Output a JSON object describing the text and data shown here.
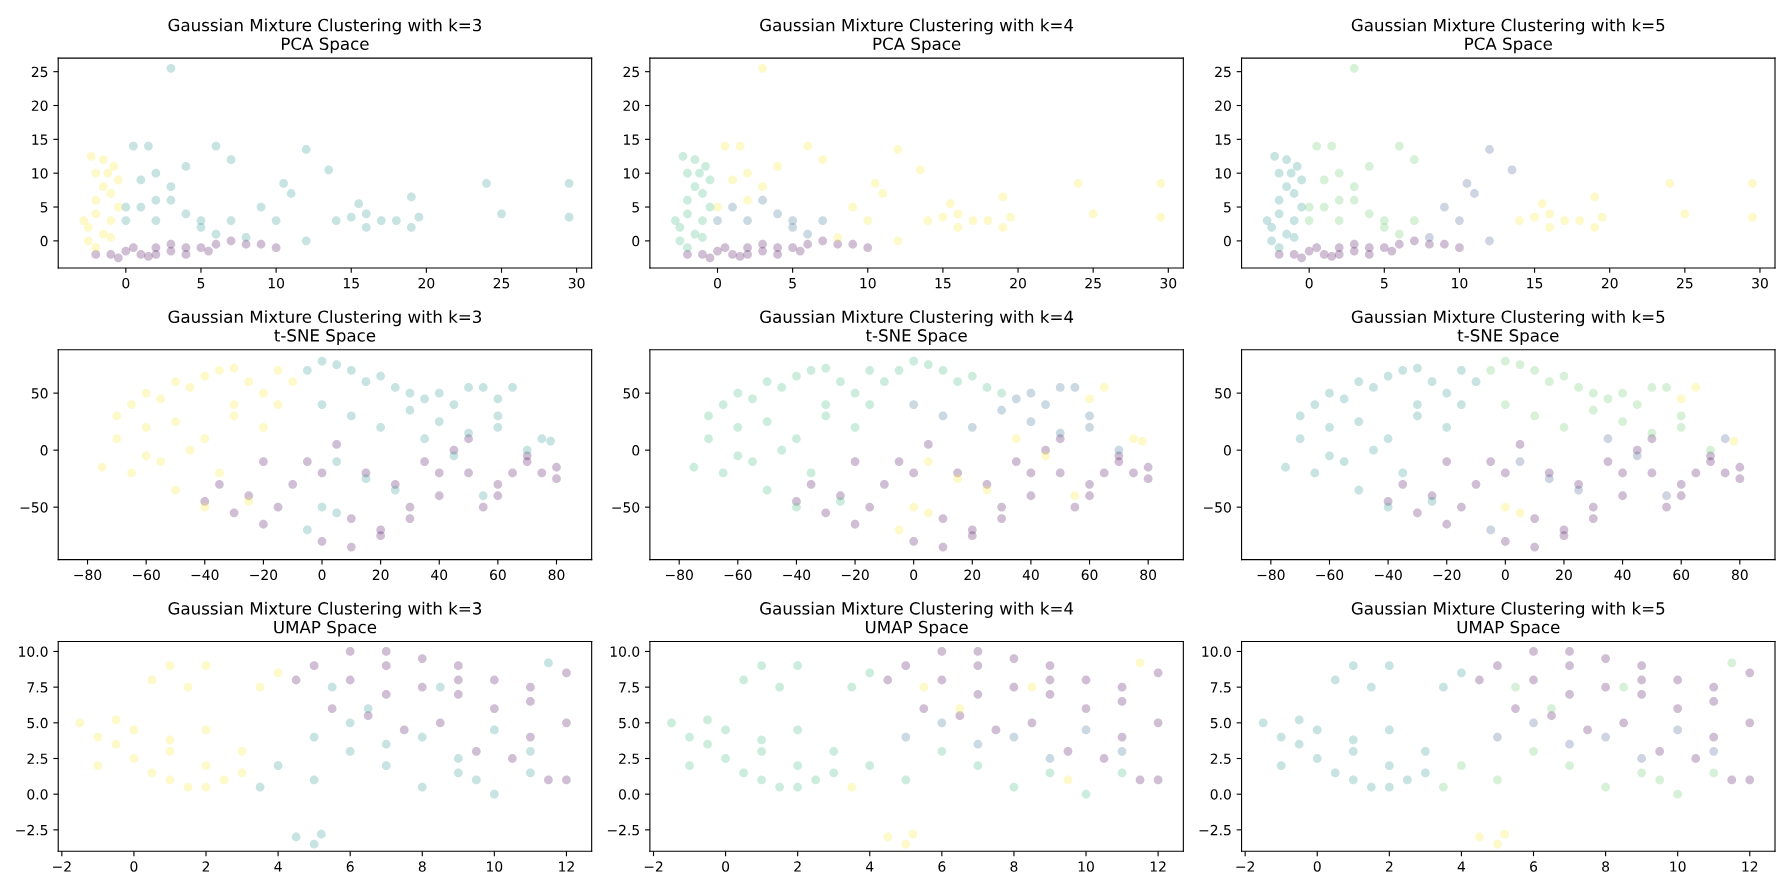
{
  "chart_data": [
    {
      "type": "scatter",
      "title": "Gaussian Mixture Clustering with k=3",
      "subtitle": "PCA Space",
      "marker": "circle",
      "grid": false,
      "xlim": [
        -4.5,
        31
      ],
      "ylim": [
        -4,
        27
      ],
      "xticks": [
        0,
        5,
        10,
        15,
        20,
        25,
        30
      ],
      "yticks": [
        0,
        5,
        10,
        15,
        20,
        25
      ],
      "series": [
        {
          "color": "#440154",
          "x": [
            -2,
            -1,
            0,
            1,
            2,
            3,
            4,
            5,
            6,
            7,
            8,
            0.5,
            2,
            3,
            1.5,
            -0.5,
            4,
            5.5,
            9,
            10
          ],
          "values": [
            -2,
            -2,
            -1.5,
            -2,
            -2,
            -1.5,
            -1,
            -1,
            -0.5,
            0,
            -0.5,
            -1,
            -1,
            -0.5,
            -2.3,
            -2.5,
            -2,
            -1.5,
            -0.5,
            -1
          ]
        },
        {
          "color": "#21918c",
          "x": [
            0,
            0.5,
            1,
            1.5,
            2,
            2,
            3,
            3,
            4,
            4,
            5,
            6,
            6,
            7,
            0,
            1,
            2,
            3,
            5,
            7,
            8,
            9,
            10,
            10.5,
            11,
            12,
            12,
            13.5,
            14,
            15,
            15.5,
            16,
            16,
            17,
            18,
            19,
            19,
            19.5,
            24,
            25,
            29.5,
            29.5
          ],
          "values": [
            5,
            14,
            9,
            14,
            6,
            10,
            8,
            25.5,
            4,
            11,
            2,
            14,
            1,
            12,
            3,
            5,
            3,
            6,
            3,
            3,
            0.5,
            5,
            3,
            8.5,
            7,
            13.5,
            0,
            10.5,
            3,
            3.5,
            5.5,
            4,
            2,
            3,
            3,
            6.5,
            2,
            3.5,
            8.5,
            4,
            8.5,
            3.5
          ]
        },
        {
          "color": "#fde725",
          "x": [
            -2.5,
            -2.5,
            -2,
            -2,
            -1.5,
            -1,
            -1,
            -0.5,
            -2,
            -1.5,
            -1,
            -2.8,
            -0.5,
            -1.2,
            -2,
            -1.5,
            -2.3,
            -0.8
          ],
          "values": [
            0,
            2,
            4,
            6,
            8,
            7,
            3,
            5,
            -1,
            1,
            0.5,
            3,
            9,
            10,
            10,
            12,
            12.5,
            11
          ]
        }
      ]
    },
    {
      "type": "scatter",
      "title": "Gaussian Mixture Clustering with k=4",
      "subtitle": "PCA Space",
      "marker": "circle",
      "grid": false,
      "xlim": [
        -4.5,
        31
      ],
      "ylim": [
        -4,
        27
      ],
      "xticks": [
        0,
        5,
        10,
        15,
        20,
        25,
        30
      ],
      "yticks": [
        0,
        5,
        10,
        15,
        20,
        25
      ],
      "series": [
        {
          "color": "#440154",
          "x": [
            -2,
            -1,
            0,
            1,
            2,
            3,
            4,
            5,
            6,
            7,
            8,
            0.5,
            2,
            3,
            1.5,
            -0.5,
            4,
            5.5,
            9,
            10
          ],
          "values": [
            -2,
            -2,
            -1.5,
            -2,
            -2,
            -1.5,
            -1,
            -1,
            -0.5,
            0,
            -0.5,
            -1,
            -1,
            -0.5,
            -2.3,
            -2.5,
            -2,
            -1.5,
            -0.5,
            -1
          ]
        },
        {
          "color": "#31688e",
          "x": [
            5,
            6,
            0,
            1,
            2,
            3,
            5,
            7,
            4
          ],
          "values": [
            2,
            1,
            3,
            5,
            3,
            6,
            3,
            3,
            4
          ]
        },
        {
          "color": "#35b779",
          "x": [
            -2.5,
            -2.5,
            -2,
            -2,
            -1.5,
            -1,
            -1,
            -0.5,
            -2,
            -1.5,
            -1,
            -2.8,
            -0.5,
            -1.2,
            -2,
            -1.5,
            -2.3,
            -0.8
          ],
          "values": [
            0,
            2,
            4,
            6,
            8,
            7,
            3,
            5,
            -1,
            1,
            0.5,
            3,
            9,
            10,
            10,
            12,
            12.5,
            11
          ]
        },
        {
          "color": "#fde725",
          "x": [
            0,
            0.5,
            1,
            1.5,
            2,
            2,
            3,
            3,
            4,
            6,
            7,
            8,
            9,
            10,
            10.5,
            11,
            12,
            12,
            13.5,
            14,
            15,
            15.5,
            16,
            16,
            17,
            18,
            19,
            19,
            19.5,
            24,
            25,
            29.5,
            29.5
          ],
          "values": [
            5,
            14,
            9,
            14,
            6,
            10,
            8,
            25.5,
            11,
            14,
            12,
            0.5,
            5,
            3,
            8.5,
            7,
            13.5,
            0,
            10.5,
            3,
            3.5,
            5.5,
            4,
            2,
            3,
            3,
            6.5,
            2,
            3.5,
            8.5,
            4,
            8.5,
            3.5
          ]
        }
      ]
    },
    {
      "type": "scatter",
      "title": "Gaussian Mixture Clustering with k=5",
      "subtitle": "PCA Space",
      "marker": "circle",
      "grid": false,
      "xlim": [
        -4.5,
        31
      ],
      "ylim": [
        -4,
        27
      ],
      "xticks": [
        0,
        5,
        10,
        15,
        20,
        25,
        30
      ],
      "yticks": [
        0,
        5,
        10,
        15,
        20,
        25
      ],
      "series": [
        {
          "color": "#440154",
          "x": [
            -2,
            -1,
            0,
            1,
            2,
            3,
            4,
            5,
            6,
            7,
            8,
            0.5,
            2,
            3,
            1.5,
            -0.5,
            4,
            5.5,
            9,
            10
          ],
          "values": [
            -2,
            -2,
            -1.5,
            -2,
            -2,
            -1.5,
            -1,
            -1,
            -0.5,
            0,
            -0.5,
            -1,
            -1,
            -0.5,
            -2.3,
            -2.5,
            -2,
            -1.5,
            -0.5,
            -1
          ]
        },
        {
          "color": "#3b528b",
          "x": [
            8,
            9,
            10,
            10.5,
            11,
            12,
            12,
            13.5
          ],
          "values": [
            0.5,
            5,
            3,
            8.5,
            7,
            13.5,
            0,
            10.5
          ]
        },
        {
          "color": "#21918c",
          "x": [
            -2.5,
            -2.5,
            -2,
            -2,
            -1.5,
            -1,
            -1,
            -0.5,
            -2,
            -1.5,
            -1,
            -2.8,
            -0.5,
            -1.2,
            -2,
            -1.5,
            -2.3,
            -0.8
          ],
          "values": [
            0,
            2,
            4,
            6,
            8,
            7,
            3,
            5,
            -1,
            1,
            0.5,
            3,
            9,
            10,
            10,
            12,
            12.5,
            11
          ]
        },
        {
          "color": "#5ec962",
          "x": [
            0,
            0.5,
            1,
            1.5,
            2,
            2,
            3,
            3,
            4,
            4,
            5,
            6,
            6,
            7,
            0,
            1,
            2,
            3,
            5,
            7
          ],
          "values": [
            5,
            14,
            9,
            14,
            6,
            10,
            8,
            25.5,
            4,
            11,
            2,
            14,
            1,
            12,
            3,
            5,
            3,
            6,
            3,
            3
          ]
        },
        {
          "color": "#fde725",
          "x": [
            14,
            15,
            15.5,
            16,
            16,
            17,
            18,
            19,
            19,
            19.5,
            24,
            25,
            29.5,
            29.5
          ],
          "values": [
            3,
            3.5,
            5.5,
            4,
            2,
            3,
            3,
            6.5,
            2,
            3.5,
            8.5,
            4,
            8.5,
            3.5
          ]
        }
      ]
    },
    {
      "type": "scatter",
      "title": "Gaussian Mixture Clustering with k=3",
      "subtitle": "t-SNE Space",
      "marker": "circle",
      "grid": false,
      "xlim": [
        -90,
        92
      ],
      "ylim": [
        -96,
        88
      ],
      "xticks": [
        {
          "value": -80,
          "label": "−80"
        },
        {
          "value": -60,
          "label": "−60"
        },
        {
          "value": -40,
          "label": "−40"
        },
        {
          "value": -20,
          "label": "−20"
        },
        0,
        20,
        40,
        60,
        80
      ],
      "yticks": [
        {
          "value": -50,
          "label": "−50"
        },
        0,
        50
      ],
      "series": [
        {
          "color": "#440154",
          "x": [
            -40,
            -30,
            -20,
            -10,
            0,
            10,
            20,
            30,
            40,
            50,
            60,
            70,
            80,
            -35,
            -25,
            -15,
            -5,
            5,
            15,
            25,
            35,
            45,
            55,
            65,
            75,
            -20,
            0,
            10,
            20,
            30,
            40,
            50,
            60,
            70,
            80
          ],
          "values": [
            -45,
            -55,
            -65,
            -30,
            -20,
            -60,
            -70,
            -50,
            -40,
            -20,
            -30,
            -10,
            -15,
            -30,
            -40,
            -50,
            -10,
            5,
            -20,
            -30,
            -10,
            0,
            -50,
            -20,
            -20,
            -10,
            -80,
            -85,
            -75,
            -60,
            -20,
            10,
            -40,
            -5,
            -25
          ]
        },
        {
          "color": "#21918c",
          "x": [
            -5,
            0,
            5,
            10,
            15,
            20,
            25,
            30,
            35,
            40,
            45,
            50,
            55,
            60,
            0,
            10,
            20,
            30,
            40,
            50,
            60,
            70,
            75,
            5,
            15,
            25,
            35,
            45,
            -5,
            55,
            65,
            60,
            78,
            0,
            5
          ],
          "values": [
            70,
            78,
            75,
            70,
            60,
            65,
            55,
            50,
            45,
            50,
            40,
            55,
            55,
            30,
            40,
            30,
            20,
            35,
            25,
            15,
            20,
            0,
            10,
            -10,
            -25,
            -35,
            10,
            -5,
            -70,
            -40,
            55,
            45,
            8,
            -50,
            -55
          ]
        },
        {
          "color": "#fde725",
          "x": [
            -70,
            -65,
            -60,
            -55,
            -50,
            -45,
            -40,
            -35,
            -30,
            -25,
            -20,
            -15,
            -60,
            -50,
            -40,
            -30,
            -20,
            -10,
            -70,
            -55,
            -45,
            -35,
            -25,
            -65,
            -50,
            -40,
            -75,
            -60,
            -30,
            -15
          ],
          "values": [
            30,
            40,
            50,
            45,
            60,
            55,
            65,
            70,
            72,
            60,
            50,
            40,
            20,
            25,
            10,
            30,
            20,
            60,
            10,
            -10,
            0,
            -20,
            -45,
            -20,
            -35,
            -50,
            -15,
            -5,
            40,
            70
          ]
        }
      ]
    },
    {
      "type": "scatter",
      "title": "Gaussian Mixture Clustering with k=4",
      "subtitle": "t-SNE Space",
      "marker": "circle",
      "grid": false,
      "xlim": [
        -90,
        92
      ],
      "ylim": [
        -96,
        88
      ],
      "xticks": [
        {
          "value": -80,
          "label": "−80"
        },
        {
          "value": -60,
          "label": "−60"
        },
        {
          "value": -40,
          "label": "−40"
        },
        {
          "value": -20,
          "label": "−20"
        },
        0,
        20,
        40,
        60,
        80
      ],
      "yticks": [
        {
          "value": -50,
          "label": "−50"
        },
        0,
        50
      ],
      "series": [
        {
          "color": "#440154",
          "x": [
            -40,
            -30,
            -20,
            -10,
            0,
            10,
            20,
            30,
            40,
            50,
            60,
            70,
            80,
            -35,
            -25,
            -15,
            -5,
            5,
            15,
            25,
            35,
            45,
            55,
            65,
            75,
            -20,
            0,
            10,
            20,
            30,
            40,
            50,
            60,
            70,
            80
          ],
          "values": [
            -45,
            -55,
            -65,
            -30,
            -20,
            -60,
            -70,
            -50,
            -40,
            -20,
            -30,
            -10,
            -15,
            -30,
            -40,
            -50,
            -10,
            5,
            -20,
            -30,
            -10,
            0,
            -50,
            -20,
            -20,
            -10,
            -80,
            -85,
            -75,
            -60,
            -20,
            10,
            -40,
            -5,
            -25
          ]
        },
        {
          "color": "#31688e",
          "x": [
            35,
            40,
            45,
            50,
            55,
            60,
            0,
            10,
            20,
            30,
            40,
            50,
            60,
            70
          ],
          "values": [
            45,
            50,
            40,
            55,
            55,
            30,
            40,
            30,
            20,
            35,
            25,
            15,
            20,
            0
          ]
        },
        {
          "color": "#35b779",
          "x": [
            -70,
            -65,
            -60,
            -55,
            -50,
            -45,
            -40,
            -35,
            -30,
            -25,
            -20,
            -15,
            -60,
            -50,
            -40,
            -30,
            -20,
            -10,
            -70,
            -55,
            -45,
            -35,
            -25,
            -65,
            -50,
            -40,
            -75,
            -60,
            -30,
            -15,
            -5,
            0,
            5,
            10,
            15,
            20,
            25,
            30
          ],
          "values": [
            30,
            40,
            50,
            45,
            60,
            55,
            65,
            70,
            72,
            60,
            50,
            40,
            20,
            25,
            10,
            30,
            20,
            60,
            10,
            -10,
            0,
            -20,
            -45,
            -20,
            -35,
            -50,
            -15,
            -5,
            40,
            70,
            70,
            78,
            75,
            70,
            60,
            65,
            55,
            50
          ]
        },
        {
          "color": "#fde725",
          "x": [
            75,
            5,
            15,
            25,
            35,
            45,
            -5,
            55,
            65,
            60,
            78,
            0,
            5
          ],
          "values": [
            10,
            -10,
            -25,
            -35,
            10,
            -5,
            -70,
            -40,
            55,
            45,
            8,
            -50,
            -55
          ]
        }
      ]
    },
    {
      "type": "scatter",
      "title": "Gaussian Mixture Clustering with k=5",
      "subtitle": "t-SNE Space",
      "marker": "circle",
      "grid": false,
      "xlim": [
        -90,
        92
      ],
      "ylim": [
        -96,
        88
      ],
      "xticks": [
        {
          "value": -80,
          "label": "−80"
        },
        {
          "value": -60,
          "label": "−60"
        },
        {
          "value": -40,
          "label": "−40"
        },
        {
          "value": -20,
          "label": "−20"
        },
        0,
        20,
        40,
        60,
        80
      ],
      "yticks": [
        {
          "value": -50,
          "label": "−50"
        },
        0,
        50
      ],
      "series": [
        {
          "color": "#440154",
          "x": [
            -40,
            -30,
            -20,
            -10,
            0,
            10,
            20,
            30,
            40,
            50,
            60,
            70,
            80,
            -35,
            -25,
            -15,
            -5,
            5,
            15,
            25,
            35,
            45,
            55,
            65,
            75,
            -20,
            0,
            10,
            20,
            30,
            40,
            50,
            60,
            70,
            80
          ],
          "values": [
            -45,
            -55,
            -65,
            -30,
            -20,
            -60,
            -70,
            -50,
            -40,
            -20,
            -30,
            -10,
            -15,
            -30,
            -40,
            -50,
            -10,
            5,
            -20,
            -30,
            -10,
            0,
            -50,
            -20,
            -20,
            -10,
            -80,
            -85,
            -75,
            -60,
            -20,
            10,
            -40,
            -5,
            -25
          ]
        },
        {
          "color": "#3b528b",
          "x": [
            75,
            5,
            15,
            25,
            35,
            45,
            -5,
            55
          ],
          "values": [
            10,
            -10,
            -25,
            -35,
            10,
            -5,
            -70,
            -40
          ]
        },
        {
          "color": "#21918c",
          "x": [
            -70,
            -65,
            -60,
            -55,
            -50,
            -45,
            -40,
            -35,
            -30,
            -25,
            -20,
            -15,
            -60,
            -50,
            -40,
            -30,
            -20,
            -10,
            -70,
            -55,
            -45,
            -35,
            -25,
            -65,
            -50,
            -40,
            -75,
            -60,
            -30,
            -15
          ],
          "values": [
            30,
            40,
            50,
            45,
            60,
            55,
            65,
            70,
            72,
            60,
            50,
            40,
            20,
            25,
            10,
            30,
            20,
            60,
            10,
            -10,
            0,
            -20,
            -45,
            -20,
            -35,
            -50,
            -15,
            -5,
            40,
            70
          ]
        },
        {
          "color": "#5ec962",
          "x": [
            -5,
            0,
            5,
            10,
            15,
            20,
            25,
            30,
            35,
            40,
            45,
            50,
            55,
            60,
            0,
            10,
            20,
            30,
            40,
            50,
            60,
            70
          ],
          "values": [
            70,
            78,
            75,
            70,
            60,
            65,
            55,
            50,
            45,
            50,
            40,
            55,
            55,
            30,
            40,
            30,
            20,
            35,
            25,
            15,
            20,
            0
          ]
        },
        {
          "color": "#fde725",
          "x": [
            65,
            60,
            78,
            0,
            5
          ],
          "values": [
            55,
            45,
            8,
            -50,
            -55
          ]
        }
      ]
    },
    {
      "type": "scatter",
      "title": "Gaussian Mixture Clustering with k=3",
      "subtitle": "UMAP Space",
      "marker": "circle",
      "grid": false,
      "xlim": [
        -2.1,
        12.7
      ],
      "ylim": [
        -4,
        10.7
      ],
      "xticks": [
        {
          "value": -2,
          "label": "−2"
        },
        0,
        2,
        4,
        6,
        8,
        10,
        12
      ],
      "yticks": [
        {
          "value": -2.5,
          "label": "−2.5"
        },
        {
          "value": 0,
          "label": "0.0"
        },
        {
          "value": 2.5,
          "label": "2.5"
        },
        {
          "value": 5,
          "label": "5.0"
        },
        {
          "value": 7.5,
          "label": "7.5"
        },
        {
          "value": 10,
          "label": "10.0"
        }
      ],
      "series": [
        {
          "color": "#440154",
          "x": [
            5,
            6,
            7,
            8,
            9,
            10,
            11,
            12,
            6,
            7,
            8,
            9,
            10,
            11,
            12,
            5.5,
            6.5,
            7.5,
            8.5,
            9.5,
            10.5,
            11.5,
            4.5,
            7,
            9,
            11,
            12
          ],
          "values": [
            9,
            10,
            10,
            9.5,
            9,
            8,
            7.5,
            8.5,
            8,
            7,
            7.5,
            7,
            6,
            6.5,
            5,
            6,
            5.5,
            4.5,
            5,
            3,
            2.5,
            1,
            8,
            9,
            8,
            4,
            1
          ]
        },
        {
          "color": "#21918c",
          "x": [
            4,
            5,
            6,
            7,
            8,
            9,
            10,
            11,
            5,
            6,
            7,
            8,
            9,
            10,
            11,
            4.5,
            5,
            5.2,
            11.5,
            6.5,
            8.5,
            9.5,
            3.5,
            5.5
          ],
          "values": [
            2,
            1,
            3,
            2,
            0.5,
            1.5,
            0,
            1.5,
            4,
            5,
            3.5,
            4,
            2.5,
            4.5,
            3,
            -3,
            -3.5,
            -2.8,
            9.2,
            6,
            7.5,
            1,
            0.5,
            7.5
          ]
        },
        {
          "color": "#fde725",
          "x": [
            -1.5,
            -1,
            -0.5,
            0,
            0.5,
            1,
            1.5,
            2,
            2.5,
            3,
            -1,
            0,
            1,
            2,
            3,
            0.5,
            1,
            1.5,
            2,
            -0.5,
            3.5,
            4,
            1,
            2
          ],
          "values": [
            5,
            4,
            3.5,
            2.5,
            1.5,
            1,
            0.5,
            0.5,
            1,
            1.5,
            2,
            4.5,
            3,
            2,
            3,
            8,
            9,
            7.5,
            9,
            5.2,
            7.5,
            8.5,
            3.8,
            4.5
          ]
        }
      ]
    },
    {
      "type": "scatter",
      "title": "Gaussian Mixture Clustering with k=4",
      "subtitle": "UMAP Space",
      "marker": "circle",
      "grid": false,
      "xlim": [
        -2.1,
        12.7
      ],
      "ylim": [
        -4,
        10.7
      ],
      "xticks": [
        {
          "value": -2,
          "label": "−2"
        },
        0,
        2,
        4,
        6,
        8,
        10,
        12
      ],
      "yticks": [
        {
          "value": -2.5,
          "label": "−2.5"
        },
        {
          "value": 0,
          "label": "0.0"
        },
        {
          "value": 2.5,
          "label": "2.5"
        },
        {
          "value": 5,
          "label": "5.0"
        },
        {
          "value": 7.5,
          "label": "7.5"
        },
        {
          "value": 10,
          "label": "10.0"
        }
      ],
      "series": [
        {
          "color": "#440154",
          "x": [
            5,
            6,
            7,
            8,
            9,
            10,
            11,
            12,
            6,
            7,
            8,
            9,
            10,
            11,
            12,
            5.5,
            6.5,
            7.5,
            8.5,
            9.5,
            10.5,
            11.5,
            4.5,
            7,
            9,
            11,
            12
          ],
          "values": [
            9,
            10,
            10,
            9.5,
            9,
            8,
            7.5,
            8.5,
            8,
            7,
            7.5,
            7,
            6,
            6.5,
            5,
            6,
            5.5,
            4.5,
            5,
            3,
            2.5,
            1,
            8,
            9,
            8,
            4,
            1
          ]
        },
        {
          "color": "#31688e",
          "x": [
            5,
            6,
            7,
            8,
            9,
            10,
            11
          ],
          "values": [
            4,
            5,
            3.5,
            4,
            2.5,
            4.5,
            3
          ]
        },
        {
          "color": "#35b779",
          "x": [
            -1.5,
            -1,
            -0.5,
            0,
            0.5,
            1,
            1.5,
            2,
            2.5,
            3,
            -1,
            0,
            1,
            2,
            3,
            0.5,
            1,
            1.5,
            2,
            -0.5,
            3.5,
            4,
            1,
            2,
            4,
            5,
            6,
            7,
            8,
            9,
            10,
            11
          ],
          "values": [
            5,
            4,
            3.5,
            2.5,
            1.5,
            1,
            0.5,
            0.5,
            1,
            1.5,
            2,
            4.5,
            3,
            2,
            3,
            8,
            9,
            7.5,
            9,
            5.2,
            7.5,
            8.5,
            3.8,
            4.5,
            2,
            1,
            3,
            2,
            0.5,
            1.5,
            0,
            1.5
          ]
        },
        {
          "color": "#fde725",
          "x": [
            4.5,
            5,
            5.2,
            11.5,
            6.5,
            8.5,
            9.5,
            3.5,
            5.5
          ],
          "values": [
            -3,
            -3.5,
            -2.8,
            9.2,
            6,
            7.5,
            1,
            0.5,
            7.5
          ]
        }
      ]
    },
    {
      "type": "scatter",
      "title": "Gaussian Mixture Clustering with k=5",
      "subtitle": "UMAP Space",
      "marker": "circle",
      "grid": false,
      "xlim": [
        -2.1,
        12.7
      ],
      "ylim": [
        -4,
        10.7
      ],
      "xticks": [
        {
          "value": -2,
          "label": "−2"
        },
        0,
        2,
        4,
        6,
        8,
        10,
        12
      ],
      "yticks": [
        {
          "value": -2.5,
          "label": "−2.5"
        },
        {
          "value": 0,
          "label": "0.0"
        },
        {
          "value": 2.5,
          "label": "2.5"
        },
        {
          "value": 5,
          "label": "5.0"
        },
        {
          "value": 7.5,
          "label": "7.5"
        },
        {
          "value": 10,
          "label": "10.0"
        }
      ],
      "series": [
        {
          "color": "#440154",
          "x": [
            5,
            6,
            7,
            8,
            9,
            10,
            11,
            12,
            6,
            7,
            8,
            9,
            10,
            11,
            12,
            5.5,
            6.5,
            7.5,
            8.5,
            9.5,
            10.5,
            11.5,
            4.5,
            7,
            9,
            11,
            12
          ],
          "values": [
            9,
            10,
            10,
            9.5,
            9,
            8,
            7.5,
            8.5,
            8,
            7,
            7.5,
            7,
            6,
            6.5,
            5,
            6,
            5.5,
            4.5,
            5,
            3,
            2.5,
            1,
            8,
            9,
            8,
            4,
            1
          ]
        },
        {
          "color": "#3b528b",
          "x": [
            5,
            6,
            7,
            8,
            9,
            10,
            11
          ],
          "values": [
            4,
            5,
            3.5,
            4,
            2.5,
            4.5,
            3
          ]
        },
        {
          "color": "#21918c",
          "x": [
            -1.5,
            -1,
            -0.5,
            0,
            0.5,
            1,
            1.5,
            2,
            2.5,
            3,
            -1,
            0,
            1,
            2,
            3,
            0.5,
            1,
            1.5,
            2,
            -0.5,
            3.5,
            4,
            1,
            2
          ],
          "values": [
            5,
            4,
            3.5,
            2.5,
            1.5,
            1,
            0.5,
            0.5,
            1,
            1.5,
            2,
            4.5,
            3,
            2,
            3,
            8,
            9,
            7.5,
            9,
            5.2,
            7.5,
            8.5,
            3.8,
            4.5
          ]
        },
        {
          "color": "#5ec962",
          "x": [
            4,
            5,
            6,
            7,
            8,
            9,
            10,
            11,
            11.5,
            6.5,
            8.5,
            9.5,
            3.5,
            5.5
          ],
          "values": [
            2,
            1,
            3,
            2,
            0.5,
            1.5,
            0,
            1.5,
            9.2,
            6,
            7.5,
            1,
            0.5,
            7.5
          ]
        },
        {
          "color": "#fde725",
          "x": [
            4.5,
            5,
            5.2
          ],
          "values": [
            -3,
            -3.5,
            -2.8
          ]
        }
      ]
    }
  ]
}
